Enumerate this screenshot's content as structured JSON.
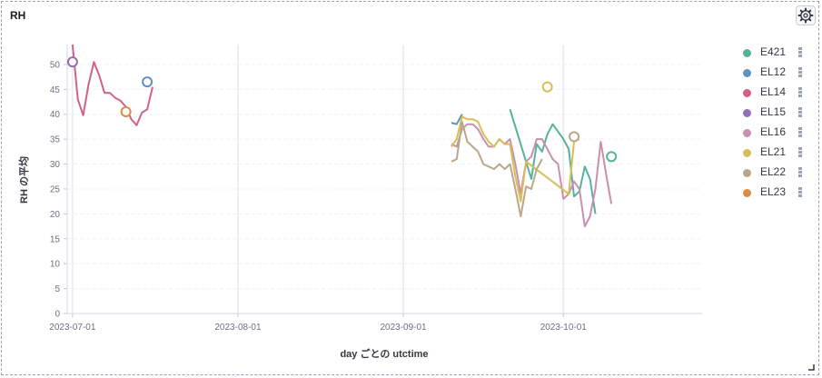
{
  "panel": {
    "title": "RH"
  },
  "colors": {
    "E421": "#54b399",
    "EL12": "#6092c0",
    "EL14": "#d36086",
    "EL15": "#9170b8",
    "EL16": "#ca8eae",
    "EL21": "#d6bf57",
    "EL22": "#b9a888",
    "EL23": "#da8b45"
  },
  "chart_data": {
    "type": "line",
    "title": "",
    "xlabel": "day ごとの utctime",
    "ylabel": "RH の平均",
    "xlim": [
      "2023-06-30",
      "2023-10-27"
    ],
    "ylim": [
      0,
      54
    ],
    "y_ticks": [
      0,
      5,
      10,
      15,
      20,
      25,
      30,
      35,
      40,
      45,
      50
    ],
    "x_ticks": [
      "2023-07-01",
      "2023-08-01",
      "2023-09-01",
      "2023-10-01"
    ],
    "grid": true,
    "legend_position": "right",
    "series": [
      {
        "name": "E421",
        "points": [
          [
            "2023-09-21",
            41
          ],
          [
            "2023-09-25",
            27
          ],
          [
            "2023-09-26",
            34
          ],
          [
            "2023-09-27",
            32.5
          ],
          [
            "2023-09-28",
            36
          ],
          [
            "2023-09-29",
            38
          ],
          [
            "2023-10-01",
            35
          ],
          [
            "2023-10-02",
            33
          ],
          [
            "2023-10-03",
            23.5
          ],
          [
            "2023-10-04",
            24.5
          ],
          [
            "2023-10-05",
            29.5
          ],
          [
            "2023-10-06",
            27
          ],
          [
            "2023-10-07",
            20
          ]
        ],
        "isolated": [
          [
            "2023-10-10",
            31.5
          ]
        ]
      },
      {
        "name": "EL12",
        "points": [
          [
            "2023-09-10",
            38.3
          ],
          [
            "2023-09-11",
            38
          ],
          [
            "2023-09-12",
            40
          ]
        ],
        "isolated": [
          [
            "2023-07-15",
            46.5
          ]
        ]
      },
      {
        "name": "EL14",
        "points": [
          [
            "2023-07-01",
            54
          ],
          [
            "2023-07-02",
            43
          ],
          [
            "2023-07-03",
            39.8
          ],
          [
            "2023-07-04",
            46
          ],
          [
            "2023-07-05",
            50.5
          ],
          [
            "2023-07-06",
            47.8
          ],
          [
            "2023-07-07",
            44.3
          ],
          [
            "2023-07-08",
            44.3
          ],
          [
            "2023-07-09",
            43.3
          ],
          [
            "2023-07-10",
            42.7
          ],
          [
            "2023-07-11",
            41.5
          ],
          [
            "2023-07-12",
            39
          ],
          [
            "2023-07-13",
            37.8
          ],
          [
            "2023-07-14",
            40.3
          ],
          [
            "2023-07-15",
            41
          ],
          [
            "2023-07-16",
            45.5
          ]
        ],
        "isolated": []
      },
      {
        "name": "EL15",
        "points": [],
        "isolated": [
          [
            "2023-07-01",
            50.5
          ]
        ]
      },
      {
        "name": "EL16",
        "points": [
          [
            "2023-09-10",
            34
          ],
          [
            "2023-09-11",
            33.5
          ],
          [
            "2023-09-12",
            37
          ],
          [
            "2023-09-13",
            38
          ],
          [
            "2023-09-14",
            38
          ],
          [
            "2023-09-15",
            37
          ],
          [
            "2023-09-16",
            35
          ],
          [
            "2023-09-17",
            33.5
          ],
          [
            "2023-09-18",
            33.5
          ],
          [
            "2023-09-19",
            35
          ],
          [
            "2023-09-20",
            34
          ],
          [
            "2023-09-21",
            35
          ],
          [
            "2023-09-22",
            30
          ],
          [
            "2023-09-23",
            24
          ],
          [
            "2023-09-24",
            30.5
          ],
          [
            "2023-09-25",
            31.5
          ],
          [
            "2023-09-26",
            35
          ],
          [
            "2023-09-27",
            35
          ],
          [
            "2023-09-28",
            33
          ],
          [
            "2023-09-29",
            31
          ],
          [
            "2023-09-30",
            30
          ],
          [
            "2023-10-01",
            23
          ],
          [
            "2023-10-02",
            24
          ],
          [
            "2023-10-03",
            26.5
          ],
          [
            "2023-10-04",
            25
          ],
          [
            "2023-10-05",
            17.5
          ],
          [
            "2023-10-06",
            19.5
          ],
          [
            "2023-10-07",
            25
          ],
          [
            "2023-10-08",
            34.5
          ],
          [
            "2023-10-09",
            28
          ],
          [
            "2023-10-10",
            22
          ]
        ],
        "isolated": []
      },
      {
        "name": "EL21",
        "points": [
          [
            "2023-09-10",
            33.5
          ],
          [
            "2023-09-11",
            35
          ],
          [
            "2023-09-12",
            39.5
          ],
          [
            "2023-09-13",
            39
          ],
          [
            "2023-09-14",
            39
          ],
          [
            "2023-09-15",
            38.5
          ],
          [
            "2023-09-16",
            36
          ],
          [
            "2023-09-17",
            34.5
          ],
          [
            "2023-09-18",
            33.5
          ],
          [
            "2023-09-19",
            35
          ],
          [
            "2023-09-20",
            34
          ],
          [
            "2023-09-21",
            34
          ],
          [
            "2023-09-22",
            27.5
          ],
          [
            "2023-09-23",
            22.5
          ],
          [
            "2023-09-24",
            30.5
          ],
          [
            "2023-10-02",
            24
          ],
          [
            "2023-10-03",
            34.5
          ],
          [
            "2023-10-04",
            35
          ]
        ],
        "isolated": [
          [
            "2023-09-28",
            45.5
          ]
        ]
      },
      {
        "name": "EL22",
        "points": [
          [
            "2023-09-10",
            30.5
          ],
          [
            "2023-09-11",
            31
          ],
          [
            "2023-09-12",
            38.5
          ],
          [
            "2023-09-13",
            34.5
          ],
          [
            "2023-09-14",
            33.5
          ],
          [
            "2023-09-15",
            32.5
          ],
          [
            "2023-09-16",
            30
          ],
          [
            "2023-09-17",
            29.5
          ],
          [
            "2023-09-18",
            29
          ],
          [
            "2023-09-19",
            30
          ],
          [
            "2023-09-20",
            29
          ],
          [
            "2023-09-21",
            30
          ],
          [
            "2023-09-22",
            25
          ],
          [
            "2023-09-23",
            19.5
          ],
          [
            "2023-09-24",
            25.5
          ],
          [
            "2023-09-25",
            25
          ],
          [
            "2023-09-26",
            29
          ],
          [
            "2023-09-27",
            31
          ]
        ],
        "isolated": [
          [
            "2023-10-03",
            35.5
          ]
        ]
      },
      {
        "name": "EL23",
        "points": [],
        "isolated": [
          [
            "2023-07-11",
            40.5
          ]
        ]
      }
    ]
  }
}
